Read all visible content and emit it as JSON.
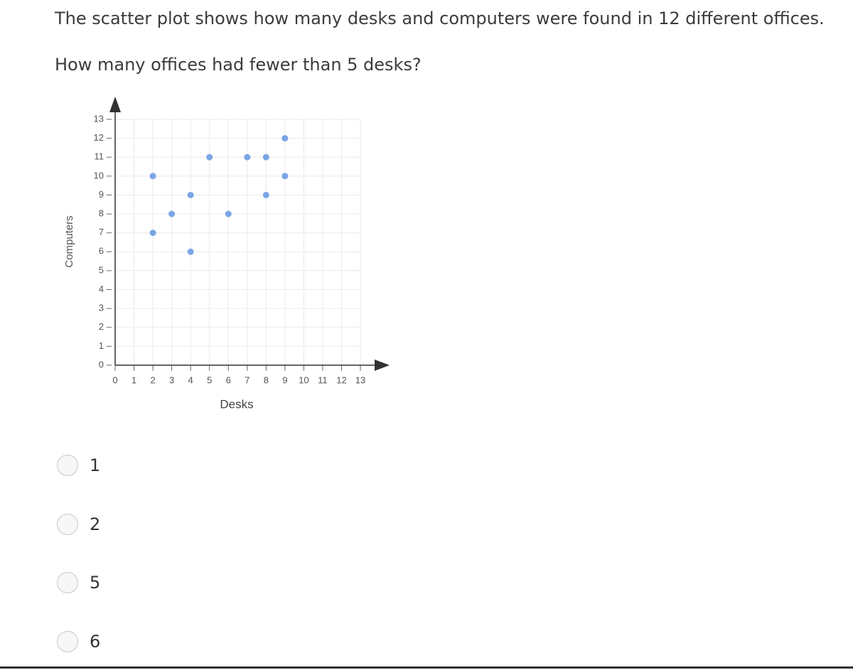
{
  "question": {
    "prompt": "The scatter plot shows how many desks and computers were found in 12 different offices.",
    "ask": "How many offices had fewer than 5 desks?"
  },
  "chart_data": {
    "type": "scatter",
    "xlabel": "Desks",
    "ylabel": "Computers",
    "x": [
      2,
      2,
      3,
      4,
      4,
      5,
      6,
      7,
      8,
      8,
      9,
      9
    ],
    "values": [
      10,
      7,
      8,
      9,
      6,
      11,
      8,
      11,
      11,
      9,
      12,
      10
    ],
    "color": "#7aa6e6",
    "xlim": [
      0,
      13
    ],
    "ylim": [
      0,
      13
    ],
    "xticks": [
      0,
      1,
      2,
      3,
      4,
      5,
      6,
      7,
      8,
      9,
      10,
      11,
      12,
      13
    ],
    "yticks": [
      0,
      1,
      2,
      3,
      4,
      5,
      6,
      7,
      8,
      9,
      10,
      11,
      12,
      13
    ],
    "grid": true
  },
  "options": [
    "1",
    "2",
    "5",
    "6"
  ]
}
